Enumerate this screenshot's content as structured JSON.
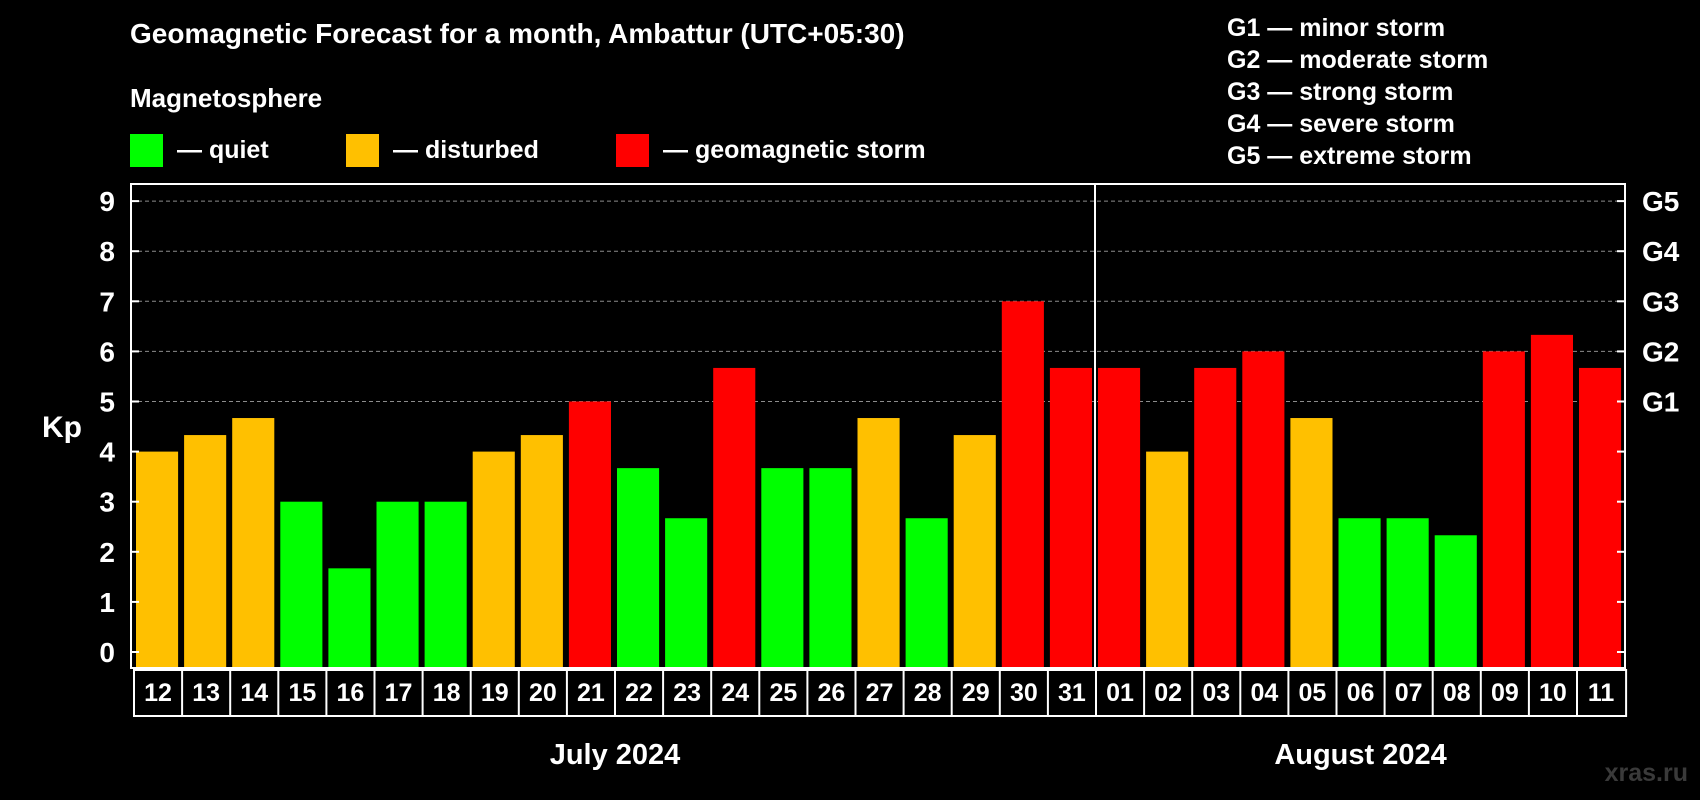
{
  "title": "Geomagnetic Forecast for a month, Ambattur (UTC+05:30)",
  "subtitle": "Magnetosphere",
  "legend": {
    "quiet": "— quiet",
    "disturbed": "— disturbed",
    "storm": "— geomagnetic storm"
  },
  "storm_legend": [
    "G1 — minor storm",
    "G2 — moderate storm",
    "G3 — strong storm",
    "G4 — severe storm",
    "G5 — extreme storm"
  ],
  "watermark": "xras.ru",
  "colors": {
    "quiet": "#00ff00",
    "disturbed": "#ffc000",
    "storm": "#ff0000",
    "background": "#000000",
    "axis": "#ffffff",
    "grid": "#8c8c8c"
  },
  "chart_data": {
    "type": "bar",
    "ylabel": "Kp",
    "ylim": [
      0,
      9
    ],
    "yticks": [
      "0",
      "1",
      "2",
      "3",
      "4",
      "5",
      "6",
      "7",
      "8",
      "9"
    ],
    "right_ticks": [
      {
        "value": 5,
        "label": "G1"
      },
      {
        "value": 6,
        "label": "G2"
      },
      {
        "value": 7,
        "label": "G3"
      },
      {
        "value": 8,
        "label": "G4"
      },
      {
        "value": 9,
        "label": "G5"
      }
    ],
    "categories": [
      "12",
      "13",
      "14",
      "15",
      "16",
      "17",
      "18",
      "19",
      "20",
      "21",
      "22",
      "23",
      "24",
      "25",
      "26",
      "27",
      "28",
      "29",
      "30",
      "31",
      "01",
      "02",
      "03",
      "04",
      "05",
      "06",
      "07",
      "08",
      "09",
      "10",
      "11"
    ],
    "values": [
      4,
      4.33,
      4.67,
      3,
      1.67,
      3,
      3,
      4,
      4.33,
      5,
      3.67,
      2.67,
      5.67,
      3.67,
      3.67,
      4.67,
      2.67,
      4.33,
      7,
      5.67,
      5.67,
      4,
      5.67,
      6,
      4.67,
      2.67,
      2.67,
      2.33,
      6,
      6.33,
      5.67
    ],
    "levels": [
      "disturbed",
      "disturbed",
      "disturbed",
      "quiet",
      "quiet",
      "quiet",
      "quiet",
      "disturbed",
      "disturbed",
      "storm",
      "quiet",
      "quiet",
      "storm",
      "quiet",
      "quiet",
      "disturbed",
      "quiet",
      "disturbed",
      "storm",
      "storm",
      "storm",
      "disturbed",
      "storm",
      "storm",
      "disturbed",
      "quiet",
      "quiet",
      "quiet",
      "storm",
      "storm",
      "storm"
    ],
    "months": [
      {
        "label": "July 2024",
        "start": 0,
        "end": 19
      },
      {
        "label": "August 2024",
        "start": 20,
        "end": 30
      }
    ]
  }
}
